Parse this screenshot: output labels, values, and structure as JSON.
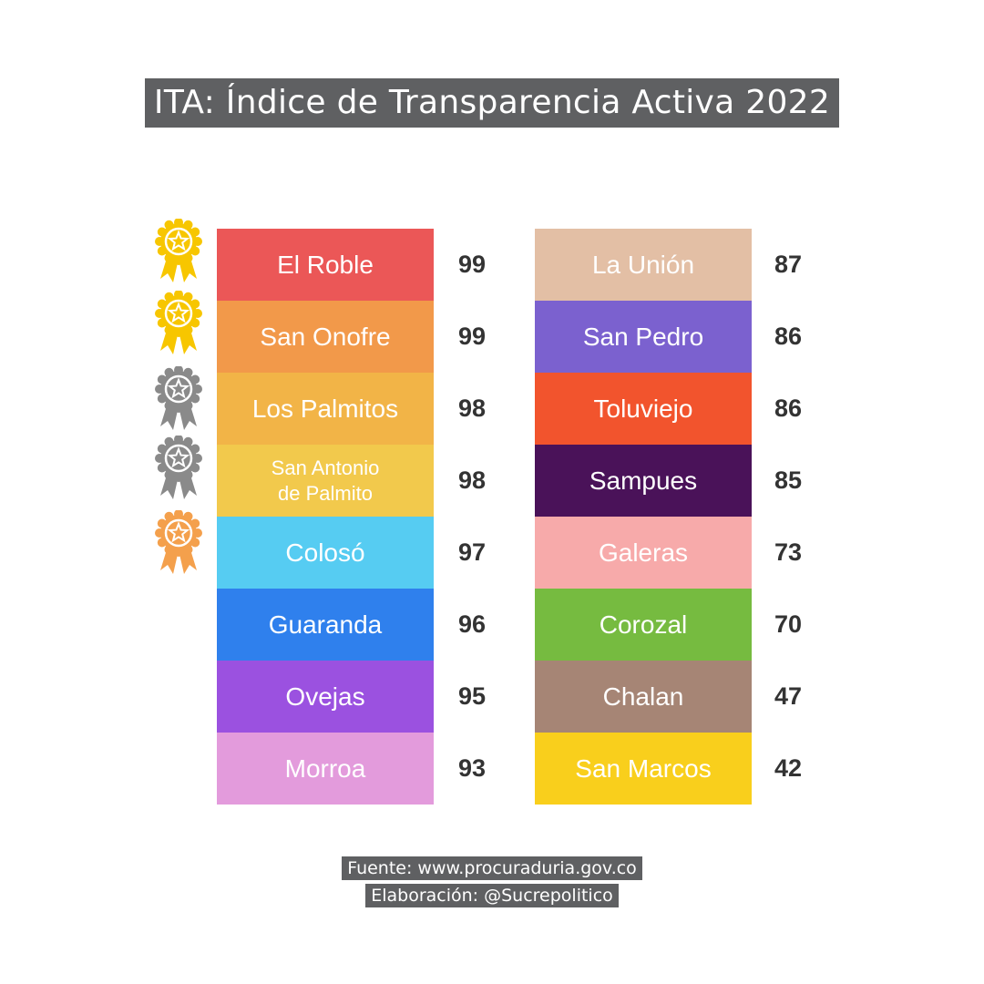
{
  "title": "ITA: Índice de Transparencia Activa 2022",
  "credits": {
    "source": "Fuente: www.procuraduria.gov.co",
    "author": "Elaboración: @Sucrepolitico"
  },
  "medals": [
    {
      "icon": "gold-medal-icon",
      "color": "#f7c600"
    },
    {
      "icon": "gold-medal-icon",
      "color": "#f7c600"
    },
    {
      "icon": "silver-medal-icon",
      "color": "#8a8a8a"
    },
    {
      "icon": "silver-medal-icon",
      "color": "#8a8a8a"
    },
    {
      "icon": "bronze-medal-icon",
      "color": "#f4a04c"
    }
  ],
  "chart_data": {
    "type": "table",
    "title": "ITA: Índice de Transparencia Activa 2022",
    "columns": [
      [
        {
          "name": "El Roble",
          "value": 99,
          "color": "#eb5757"
        },
        {
          "name": "San Onofre",
          "value": 99,
          "color": "#f2994a"
        },
        {
          "name": "Los Palmitos",
          "value": 98,
          "color": "#f2b447"
        },
        {
          "name": "San Antonio\nde Palmito",
          "value": 98,
          "color": "#f2c94c"
        },
        {
          "name": "Colosó",
          "value": 97,
          "color": "#56ccf2"
        },
        {
          "name": "Guaranda",
          "value": 96,
          "color": "#2f80ed"
        },
        {
          "name": "Ovejas",
          "value": 95,
          "color": "#9b51e0"
        },
        {
          "name": "Morroa",
          "value": 93,
          "color": "#e39bdc"
        }
      ],
      [
        {
          "name": "La Unión",
          "value": 87,
          "color": "#e3bfa5"
        },
        {
          "name": "San Pedro",
          "value": 86,
          "color": "#7b61cf"
        },
        {
          "name": "Toluviejo",
          "value": 86,
          "color": "#f2542d"
        },
        {
          "name": "Sampues",
          "value": 85,
          "color": "#4a1259"
        },
        {
          "name": "Galeras",
          "value": 73,
          "color": "#f7aaaa"
        },
        {
          "name": "Corozal",
          "value": 70,
          "color": "#76bb40"
        },
        {
          "name": "Chalan",
          "value": 47,
          "color": "#a68575"
        },
        {
          "name": "San Marcos",
          "value": 42,
          "color": "#f9cf1c"
        }
      ]
    ]
  }
}
